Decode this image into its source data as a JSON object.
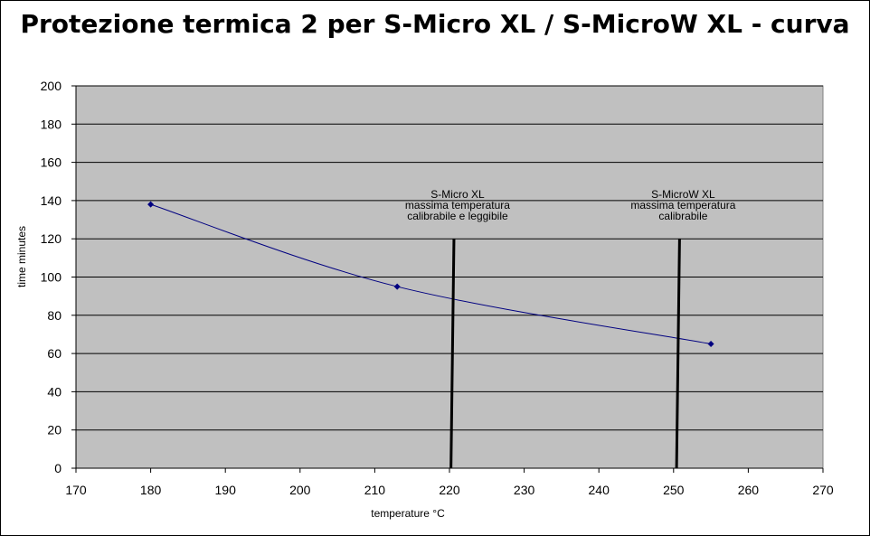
{
  "chart_data": {
    "type": "scatter",
    "title": "Protezione termica 2 per S-Micro XL / S-MicroW XL - curva",
    "xlabel": "temperature °C",
    "ylabel": "time minutes",
    "xlim": [
      170,
      270
    ],
    "ylim": [
      0,
      200
    ],
    "x_ticks": [
      170,
      180,
      190,
      200,
      210,
      220,
      230,
      240,
      250,
      260,
      270
    ],
    "y_ticks": [
      0,
      20,
      40,
      60,
      80,
      100,
      120,
      140,
      160,
      180,
      200
    ],
    "grid": "horizontal",
    "plot_background": "#c0c0c0",
    "series": [
      {
        "color": "#000080",
        "smooth": true,
        "points": [
          {
            "x": 180,
            "y": 138
          },
          {
            "x": 213,
            "y": 95
          },
          {
            "x": 255,
            "y": 65
          }
        ]
      }
    ],
    "annotations": [
      {
        "lines": [
          "S-Micro XL",
          "massima temperatura",
          "calibrabile e leggibile"
        ],
        "line_from": {
          "x": 220.6,
          "y": 120
        },
        "line_to": {
          "x": 220.2,
          "y": 0
        }
      },
      {
        "lines": [
          "S-MicroW XL",
          "massima temperatura",
          "calibrabile"
        ],
        "line_from": {
          "x": 250.8,
          "y": 120
        },
        "line_to": {
          "x": 250.4,
          "y": 0
        }
      }
    ]
  }
}
